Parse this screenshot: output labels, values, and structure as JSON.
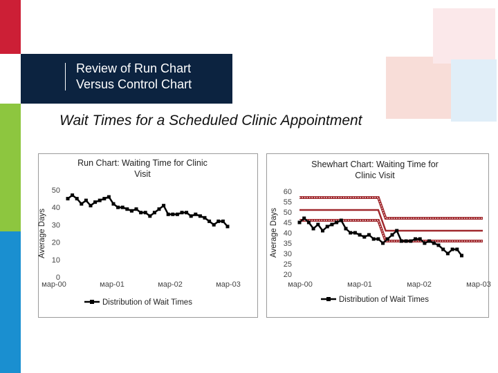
{
  "slide": {
    "title": "Review of Run Chart\nVersus Control Chart",
    "subtitle": "Wait Times for a Scheduled Clinic Appointment"
  },
  "colors": {
    "stripe_red": "#cc1f36",
    "stripe_white": "#ffffff",
    "stripe_green": "#8dc63f",
    "stripe_blue": "#1a8fd0",
    "title_bg": "#0c2340",
    "series_line": "#000000",
    "control_limit": "#a0282d"
  },
  "chart_data": [
    {
      "type": "line",
      "title": "Run Chart: Waiting Time for Clinic Visit",
      "xlabel": "",
      "ylabel": "Average Days",
      "ylim": [
        0,
        50
      ],
      "yticks": [
        "0",
        "10",
        "20",
        "30",
        "40",
        "50"
      ],
      "xticks": [
        "мар-00",
        "мар-01",
        "мар-02",
        "мар-03"
      ],
      "legend": "bottom",
      "grid": false,
      "series": [
        {
          "name": "Distribution of Wait Times",
          "values": [
            45,
            47,
            45,
            42,
            44,
            41,
            43,
            44,
            45,
            46,
            42,
            40,
            40,
            39,
            38,
            39,
            37,
            37,
            35,
            37,
            39,
            41,
            36,
            36,
            36,
            37,
            37,
            35,
            36,
            35,
            34,
            32,
            30,
            32,
            32,
            29
          ]
        }
      ]
    },
    {
      "type": "line",
      "title": "Shewhart Chart: Waiting Time for Clinic Visit",
      "xlabel": "",
      "ylabel": "Average Days",
      "ylim": [
        20,
        60
      ],
      "yticks": [
        "20",
        "25",
        "30",
        "35",
        "40",
        "45",
        "50",
        "55",
        "60"
      ],
      "xticks": [
        "мар-00",
        "мар-01",
        "мар-02",
        "мар-03"
      ],
      "legend": "bottom",
      "grid": false,
      "series": [
        {
          "name": "Distribution of Wait Times",
          "values": [
            45,
            47,
            45,
            42,
            44,
            41,
            43,
            44,
            45,
            46,
            42,
            40,
            40,
            39,
            38,
            39,
            37,
            37,
            35,
            37,
            39,
            41,
            36,
            36,
            36,
            37,
            37,
            35,
            36,
            35,
            34,
            32,
            30,
            32,
            32,
            29
          ]
        }
      ],
      "control_limits": {
        "ucl": [
          57,
          47
        ],
        "center": [
          51,
          41
        ],
        "lcl": [
          46,
          36
        ]
      }
    }
  ]
}
